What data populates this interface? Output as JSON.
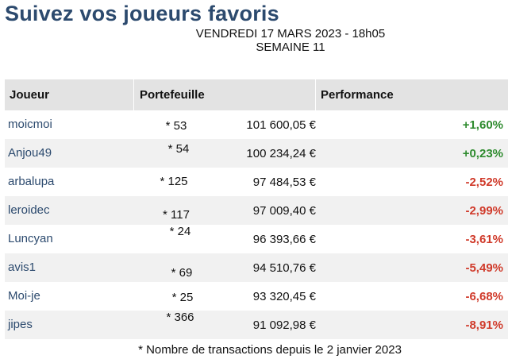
{
  "header": {
    "title": "Suivez vos joueurs favoris",
    "dateline": "VENDREDI 17 MARS 2023 - 18h05",
    "week": "SEMAINE 11"
  },
  "table": {
    "columns": [
      "Joueur",
      "Portefeuille",
      "Performance"
    ],
    "rows": [
      {
        "player": "moicmoi",
        "transactions": "* 53",
        "portfolio": "101 600,05 €",
        "performance": "+1,60%"
      },
      {
        "player": "Anjou49",
        "transactions": "* 54",
        "portfolio": "100 234,24 €",
        "performance": "+0,23%"
      },
      {
        "player": "arbalupa",
        "transactions": "* 125",
        "portfolio": "97 484,53 €",
        "performance": "-2,52%"
      },
      {
        "player": "leroidec",
        "transactions": "* 117",
        "portfolio": "97 009,40 €",
        "performance": "-2,99%"
      },
      {
        "player": "Luncyan",
        "transactions": "* 24",
        "portfolio": "96 393,66 €",
        "performance": "-3,61%"
      },
      {
        "player": "avis1",
        "transactions": "* 69",
        "portfolio": "94 510,76 €",
        "performance": "-5,49%"
      },
      {
        "player": "Moi-je",
        "transactions": "* 25",
        "portfolio": "93 320,45 €",
        "performance": "-6,68%"
      },
      {
        "player": "jipes",
        "transactions": "* 366",
        "portfolio": "91 092,98 €",
        "performance": "-8,91%"
      }
    ]
  },
  "footnote": "* Nombre de transactions depuis le 2 janvier 2023",
  "colors": {
    "title": "#2c4a6e",
    "player_name": "#2c4a6e",
    "positive": "#2e8b2e",
    "negative": "#d03a2a",
    "header_bg": "#e3e3e3",
    "stripe_bg": "#f1f1f1"
  }
}
